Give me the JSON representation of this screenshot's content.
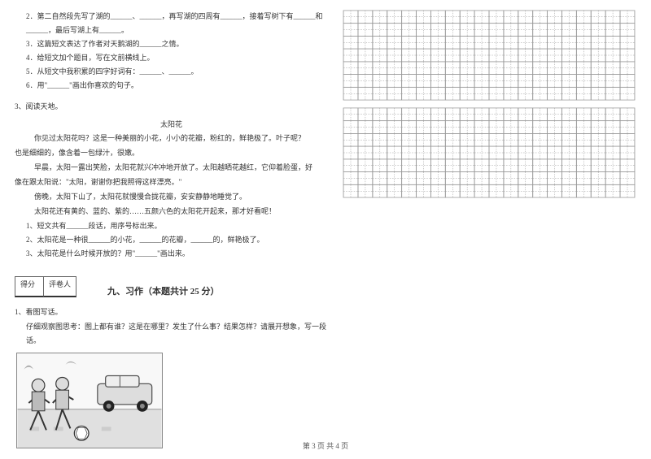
{
  "leftColumn": {
    "passage1Questions": [
      "2．第二自然段先写了湖的______、______，再写湖的四周有______，接着写树下有______和______，最后写湖上有______。",
      "3．这篇短文表达了作者对天鹅湖的______之情。",
      "4．给短文加个题目，写在文前横线上。",
      "5．从短文中我积累的四字好词有：______、______。",
      "6．用\"______\"画出你喜欢的句子。"
    ],
    "reading3Label": "3、阅读天地。",
    "reading3Title": "太阳花",
    "reading3Lines": [
      "你见过太阳花吗？这是一种美丽的小花，小小的花瓣，粉红的，鲜艳极了。叶子呢？",
      "也是细细的，像含着一包绿汁，很嫩。",
      "早晨，太阳一露出笑脸，太阳花就兴冲冲地开放了。太阳越晒花越红，它仰着脸蛋，好",
      "像在跟太阳说：\"太阳，谢谢你把我照得这样漂亮。\"",
      "傍晚，太阳下山了，太阳花就慢慢合拢花瓣，安安静静地睡觉了。",
      "太阳花还有黄的、蓝的、紫的……五颜六色的太阳花开起来，那才好看呢！"
    ],
    "reading3Questions": [
      "1、短文共有______段话，用序号标出来。",
      "2、太阳花是一种很______的小花，______的花瓣，______的，鲜艳极了。",
      "3、太阳花是什么时候开放的？用\"______\"画出来。"
    ],
    "scoreLabels": {
      "score": "得分",
      "reviewer": "评卷人"
    },
    "section9Header": "九、习作（本题共计 25 分）",
    "composition": {
      "num": "1、看图写话。",
      "prompt": "仔细观察图思考：图上都有谁？这是在哪里？发生了什么事？结果怎样？请展开想象，写一段话。"
    }
  },
  "footer": "第 3 页  共 4 页",
  "gridStyle": {
    "cols": 20,
    "rows": 7,
    "cellSize": 17,
    "outerStroke": "#999999",
    "innerStroke": "#999999",
    "dashArray": "1.5,1.5"
  },
  "illustration": {
    "bg": "#f8f8f8",
    "carBody": "#666",
    "wheel": "#222",
    "ball": "#333",
    "road": "#888"
  }
}
